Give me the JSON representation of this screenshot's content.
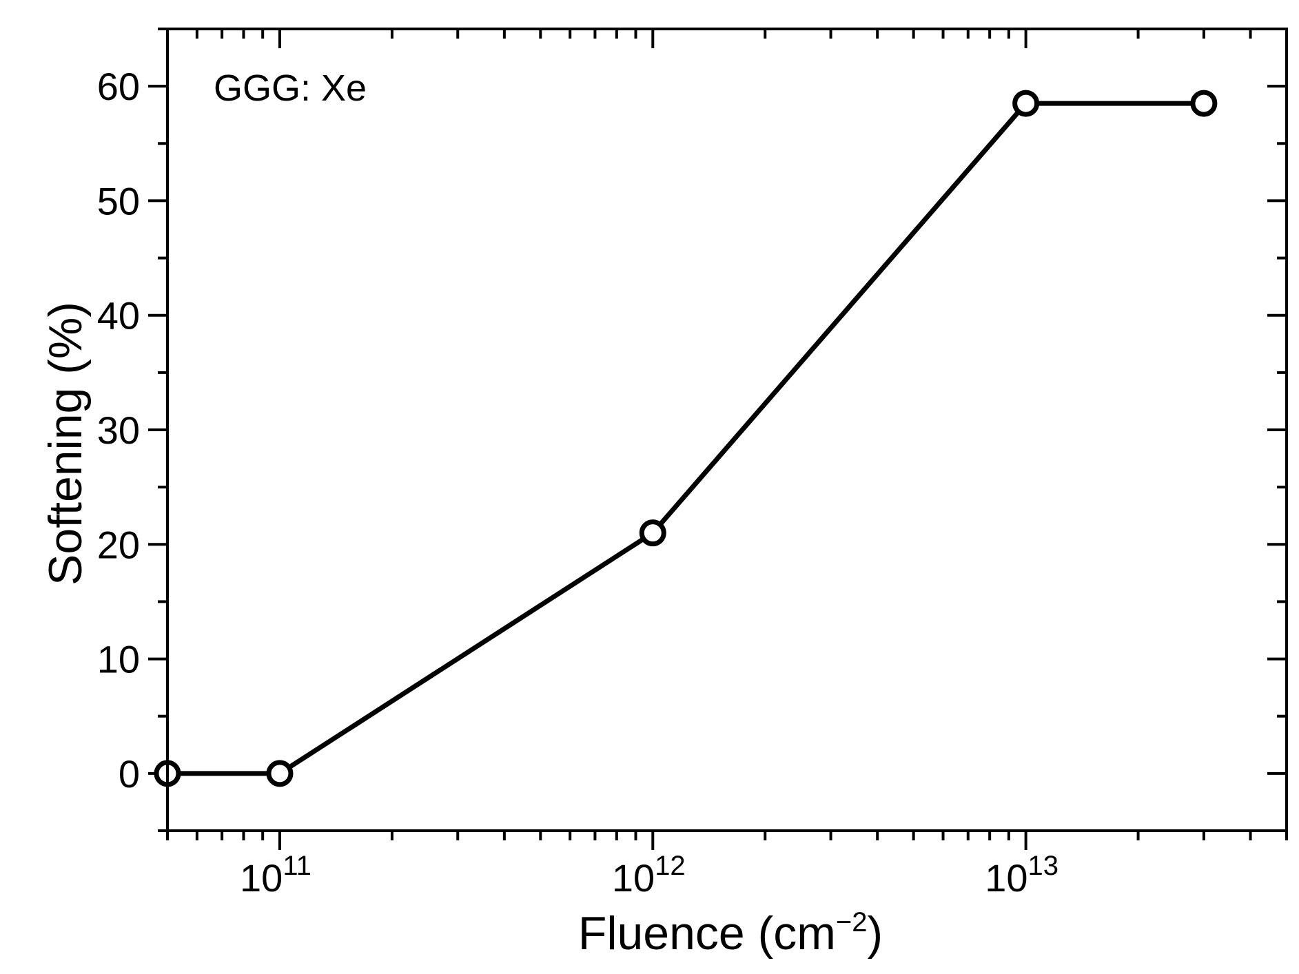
{
  "chart_data": {
    "type": "line",
    "annotation": "GGG: Xe",
    "xlabel": {
      "text": "Fluence (cm",
      "sup": "−2",
      "close": ")"
    },
    "ylabel": "Softening (%)",
    "x_scale": "log",
    "xlim": [
      50000000000.0,
      50000000000000.0
    ],
    "ylim": [
      -5,
      65
    ],
    "x_ticks": [
      {
        "value": 100000000000.0,
        "base": "10",
        "exp": "11"
      },
      {
        "value": 1000000000000.0,
        "base": "10",
        "exp": "12"
      },
      {
        "value": 10000000000000.0,
        "base": "10",
        "exp": "13"
      }
    ],
    "y_ticks": [
      0,
      10,
      20,
      30,
      40,
      50,
      60
    ],
    "grid": false,
    "line_color": "#000000",
    "marker": "open-circle",
    "series": [
      {
        "x": [
          50000000000.0,
          100000000000.0,
          1000000000000.0,
          10000000000000.0,
          30000000000000.0
        ],
        "y": [
          0,
          0,
          21,
          58.5,
          58.5
        ]
      }
    ]
  }
}
